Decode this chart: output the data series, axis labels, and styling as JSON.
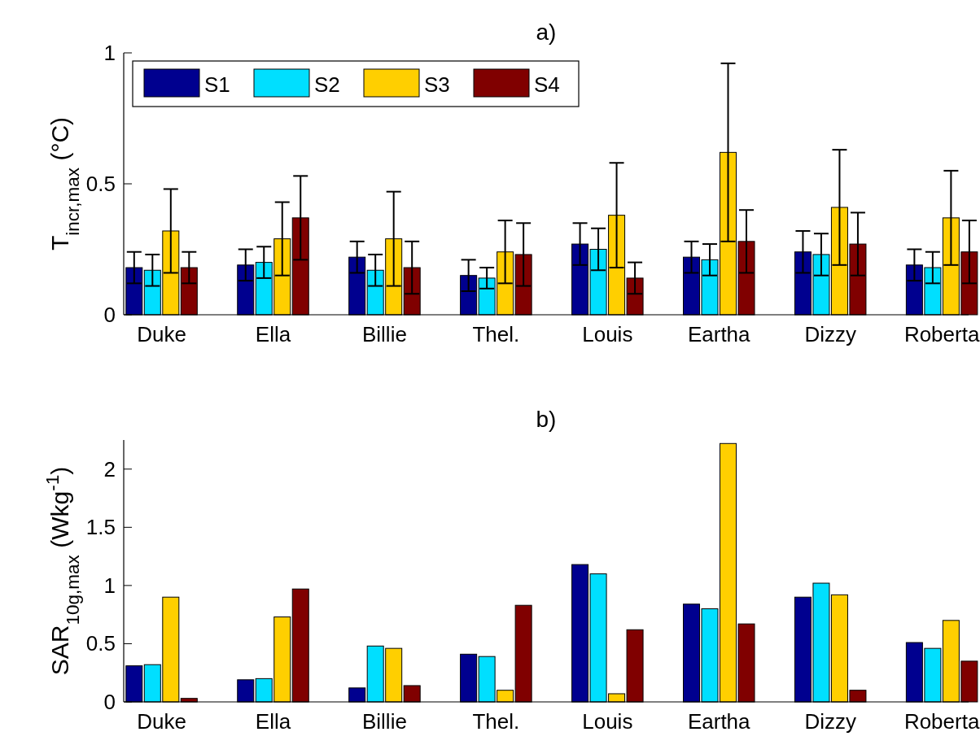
{
  "chart_data": [
    {
      "type": "bar",
      "title": "a)",
      "ylabel": "T$_{incr,max}$ (°C)",
      "categories": [
        "Duke",
        "Ella",
        "Billie",
        "Thel.",
        "Louis",
        "Eartha",
        "Dizzy",
        "Roberta"
      ],
      "ylim": [
        0,
        1
      ],
      "yticks": [
        0,
        0.5,
        1
      ],
      "grid": false,
      "legend": "top left",
      "series": [
        {
          "name": "S1",
          "color": "#00008f",
          "values": [
            0.18,
            0.19,
            0.22,
            0.15,
            0.27,
            0.22,
            0.24,
            0.19
          ],
          "errors": [
            0.06,
            0.06,
            0.06,
            0.06,
            0.08,
            0.06,
            0.08,
            0.06
          ]
        },
        {
          "name": "S2",
          "color": "#00dfff",
          "values": [
            0.17,
            0.2,
            0.17,
            0.14,
            0.25,
            0.21,
            0.23,
            0.18
          ],
          "errors": [
            0.06,
            0.06,
            0.06,
            0.04,
            0.08,
            0.06,
            0.08,
            0.06
          ]
        },
        {
          "name": "S3",
          "color": "#ffcf00",
          "values": [
            0.32,
            0.29,
            0.29,
            0.24,
            0.38,
            0.62,
            0.41,
            0.37
          ],
          "errors": [
            0.16,
            0.14,
            0.18,
            0.12,
            0.2,
            0.34,
            0.22,
            0.18
          ]
        },
        {
          "name": "S4",
          "color": "#800000",
          "values": [
            0.18,
            0.37,
            0.18,
            0.23,
            0.14,
            0.28,
            0.27,
            0.24
          ],
          "errors": [
            0.06,
            0.16,
            0.1,
            0.12,
            0.06,
            0.12,
            0.12,
            0.12
          ]
        }
      ]
    },
    {
      "type": "bar",
      "title": "b)",
      "ylabel": "SAR$_{10g,max}$ (Wkg$^{-1}$)",
      "categories": [
        "Duke",
        "Ella",
        "Billie",
        "Thel.",
        "Louis",
        "Eartha",
        "Dizzy",
        "Roberta"
      ],
      "ylim": [
        0,
        2.25
      ],
      "yticks": [
        0,
        0.5,
        1,
        1.5,
        2
      ],
      "grid": false,
      "legend": false,
      "series": [
        {
          "color": "#00008f",
          "values": [
            0.31,
            0.19,
            0.12,
            0.41,
            1.18,
            0.84,
            0.9,
            0.51
          ]
        },
        {
          "color": "#00dfff",
          "values": [
            0.32,
            0.2,
            0.48,
            0.39,
            1.1,
            0.8,
            1.02,
            0.46
          ]
        },
        {
          "color": "#ffcf00",
          "values": [
            0.9,
            0.73,
            0.46,
            0.1,
            0.07,
            2.22,
            0.92,
            0.7
          ]
        },
        {
          "color": "#800000",
          "values": [
            0.03,
            0.97,
            0.14,
            0.83,
            0.62,
            0.67,
            0.1,
            0.35
          ]
        }
      ]
    }
  ]
}
